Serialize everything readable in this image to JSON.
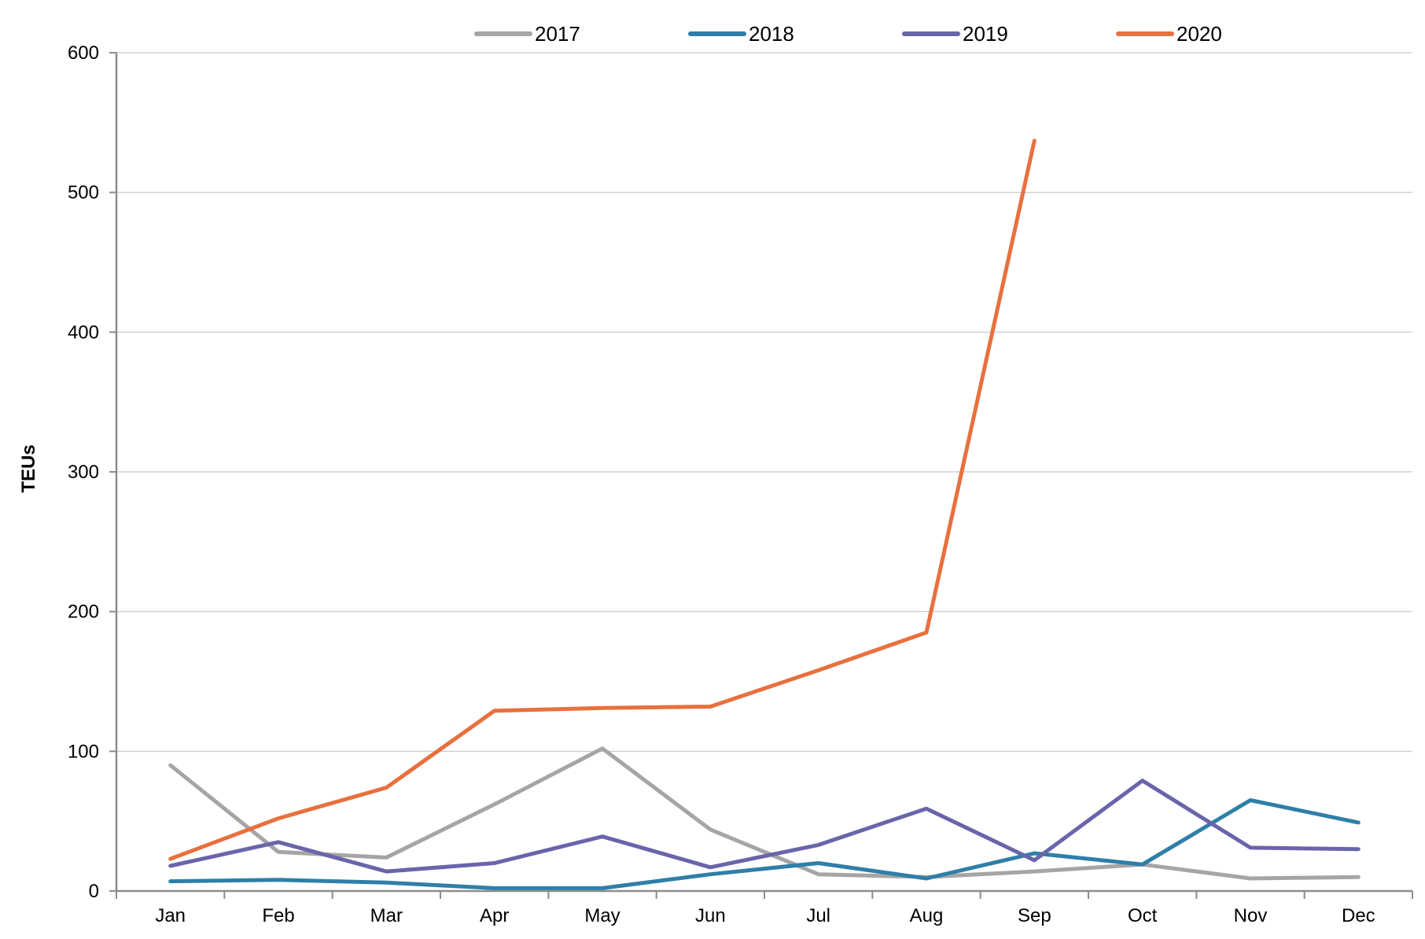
{
  "chart_data": {
    "type": "line",
    "title": "",
    "xlabel": "",
    "ylabel": "TEUs",
    "ylim": [
      0,
      600
    ],
    "yticks": [
      0,
      100,
      200,
      300,
      400,
      500,
      600
    ],
    "grid": true,
    "legend_position": "top",
    "categories": [
      "Jan",
      "Feb",
      "Mar",
      "Apr",
      "May",
      "Jun",
      "Jul",
      "Aug",
      "Sep",
      "Oct",
      "Nov",
      "Dec"
    ],
    "series": [
      {
        "name": "2017",
        "color": "#a5a5a5",
        "values": [
          90,
          28,
          24,
          62,
          102,
          44,
          12,
          10,
          14,
          19,
          9,
          10
        ]
      },
      {
        "name": "2018",
        "color": "#2e7fa8",
        "values": [
          7,
          8,
          6,
          2,
          2,
          12,
          20,
          9,
          27,
          19,
          65,
          49
        ]
      },
      {
        "name": "2019",
        "color": "#6a64ab",
        "values": [
          18,
          35,
          14,
          20,
          39,
          17,
          33,
          59,
          22,
          79,
          31,
          30
        ]
      },
      {
        "name": "2020",
        "color": "#e8703e",
        "values": [
          23,
          52,
          74,
          129,
          131,
          132,
          158,
          185,
          537,
          null,
          null,
          null
        ]
      }
    ]
  }
}
